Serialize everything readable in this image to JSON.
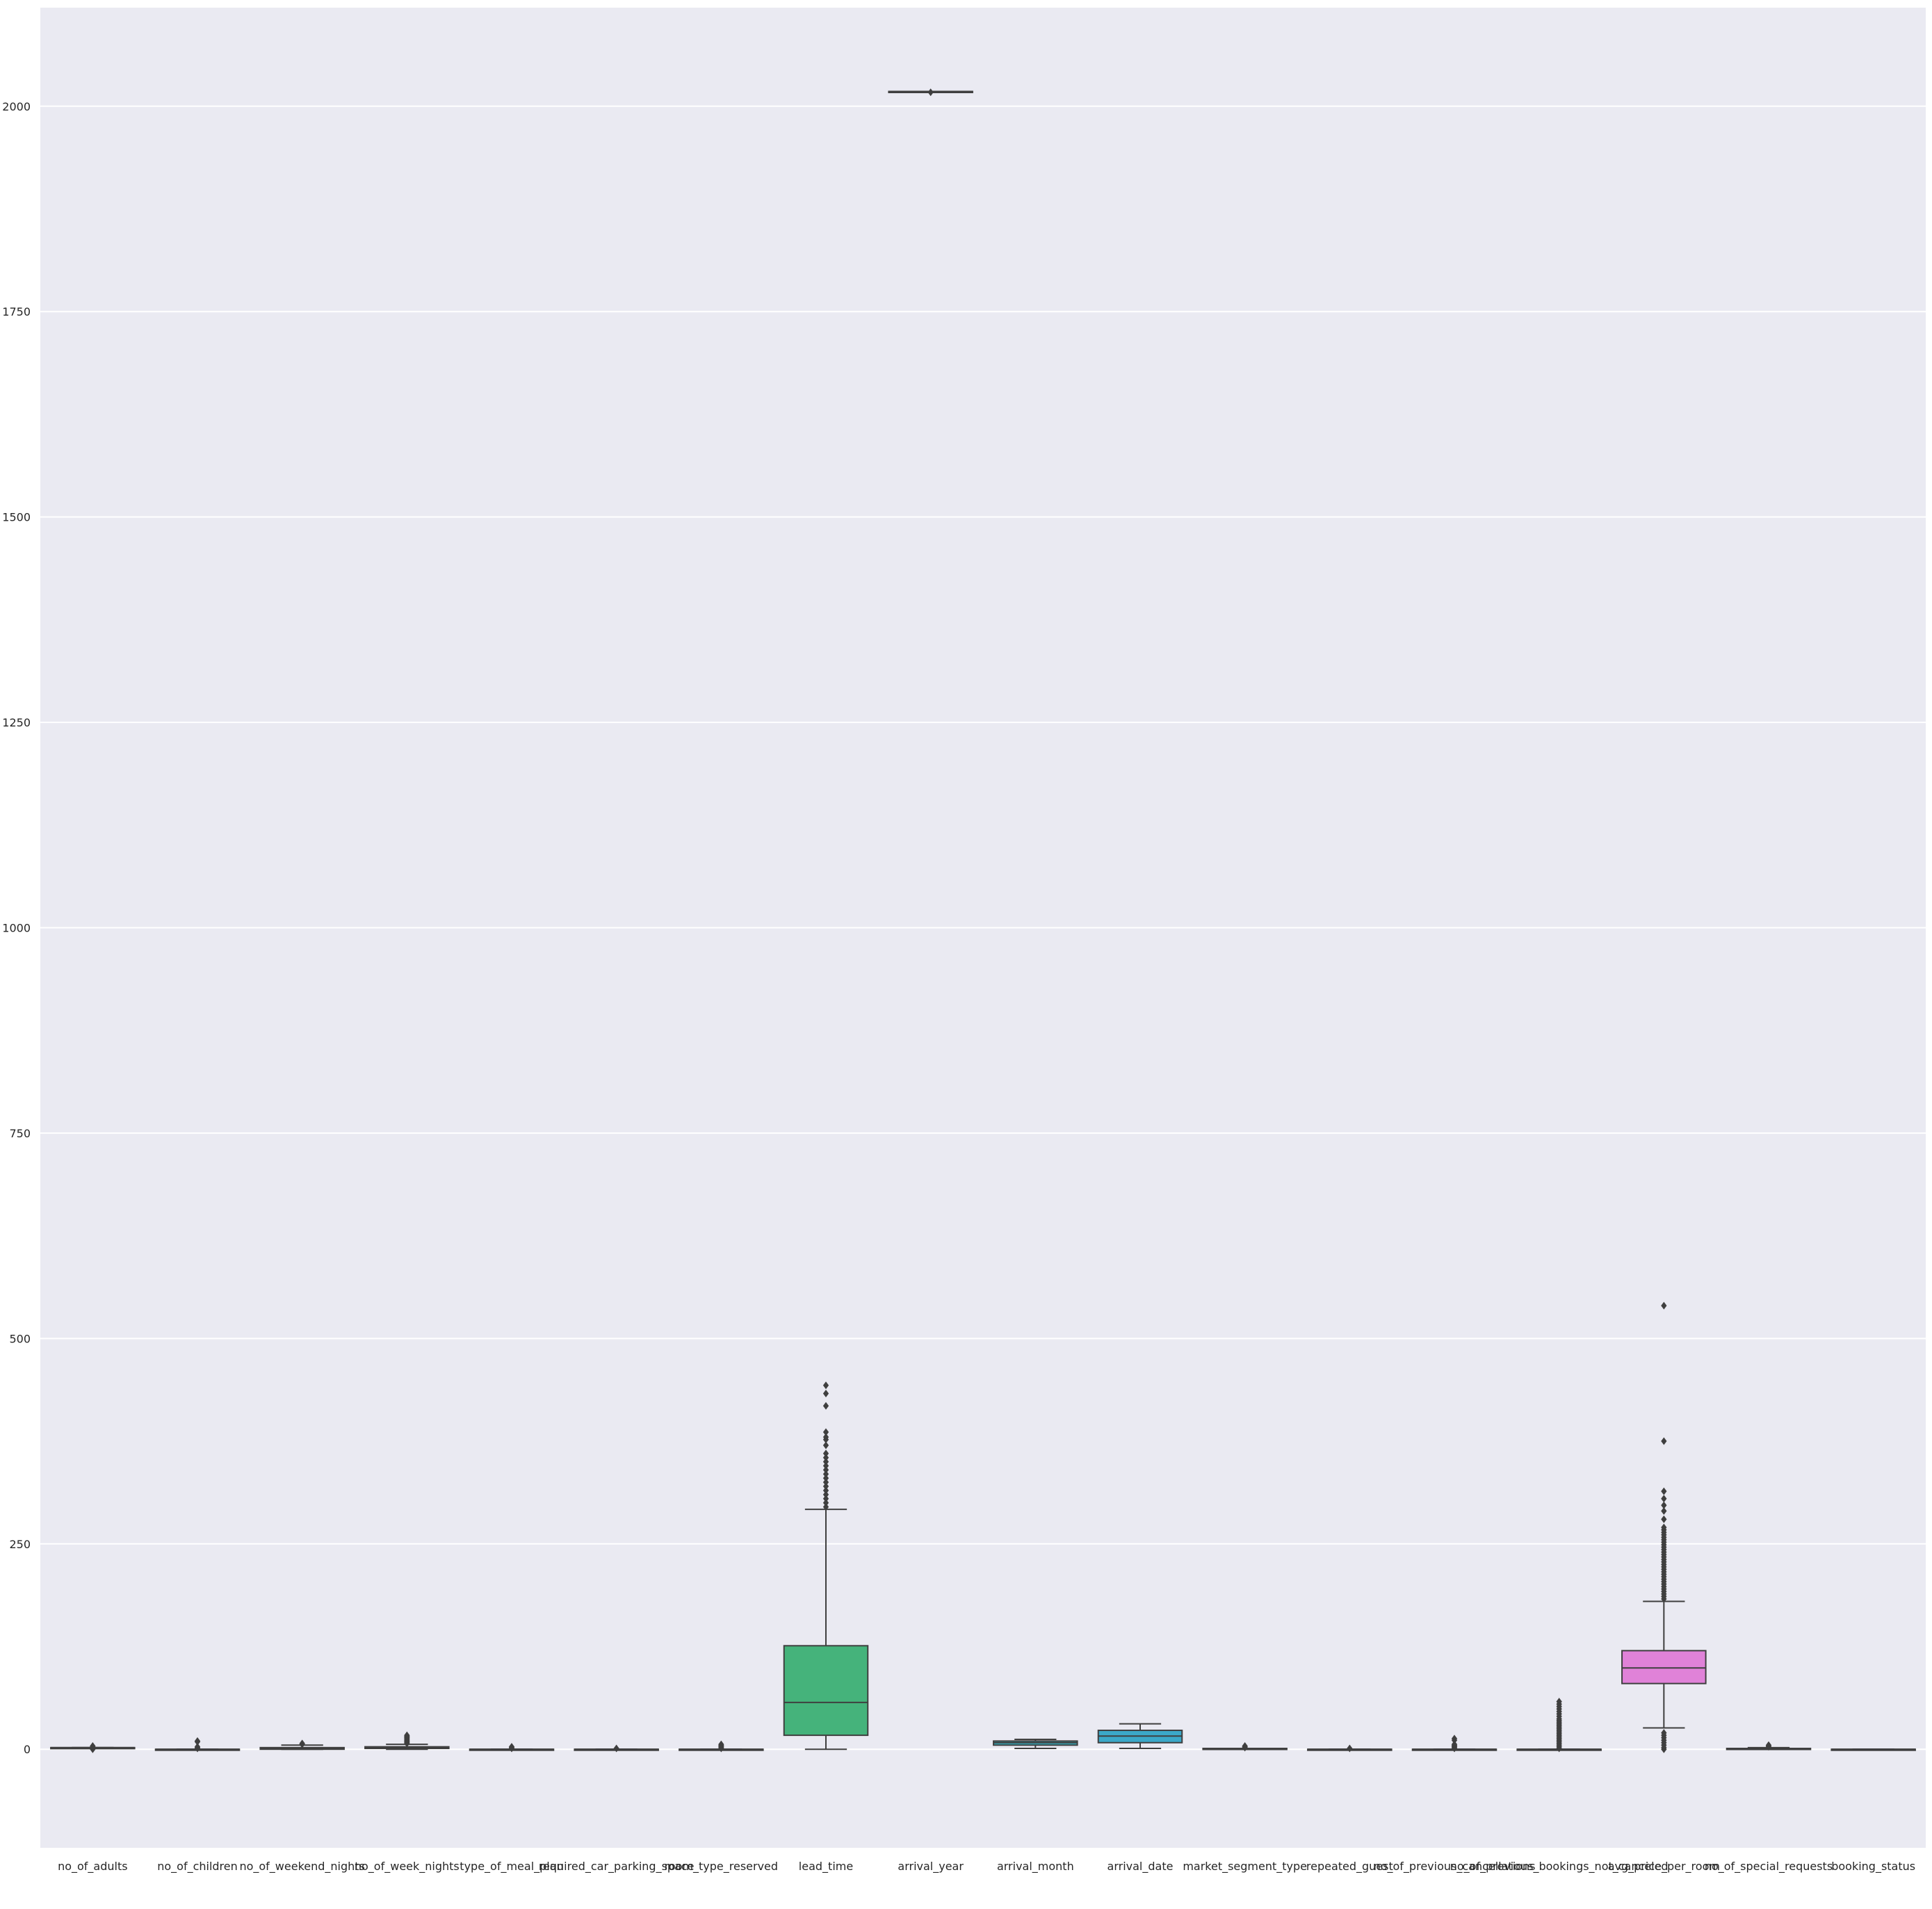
{
  "chart_data": {
    "type": "box",
    "title": "",
    "xlabel": "",
    "ylabel": "",
    "ylim": [
      -120,
      2120
    ],
    "yticks": [
      0,
      250,
      500,
      750,
      1000,
      1250,
      1500,
      1750,
      2000
    ],
    "grid": true,
    "legend": "none",
    "colors": {
      "background": "#eaeaf2",
      "grid": "#ffffff",
      "line": "#3f3f3f"
    },
    "series": [
      {
        "category": "no_of_adults",
        "color": "#e8857f",
        "q1": 2,
        "median": 2,
        "q3": 2,
        "whisker_low": 2,
        "whisker_high": 2,
        "outliers": [
          0,
          1,
          3,
          4
        ]
      },
      {
        "category": "no_of_children",
        "color": "#d8905a",
        "q1": 0,
        "median": 0,
        "q3": 0,
        "whisker_low": 0,
        "whisker_high": 0,
        "outliers": [
          1,
          2,
          3,
          9,
          10
        ]
      },
      {
        "category": "no_of_weekend_nights",
        "color": "#c29a3d",
        "q1": 0,
        "median": 1,
        "q3": 2,
        "whisker_low": 0,
        "whisker_high": 5,
        "outliers": [
          6,
          7
        ]
      },
      {
        "category": "no_of_week_nights",
        "color": "#a6a33c",
        "q1": 1,
        "median": 2,
        "q3": 3,
        "whisker_low": 0,
        "whisker_high": 6,
        "outliers": [
          7,
          8,
          9,
          10,
          11,
          12,
          13,
          14,
          15,
          16,
          17
        ]
      },
      {
        "category": "type_of_meal_plan",
        "color": "#7ead3a",
        "q1": 0,
        "median": 0,
        "q3": 0,
        "whisker_low": 0,
        "whisker_high": 0,
        "outliers": [
          1,
          2,
          3
        ]
      },
      {
        "category": "required_car_parking_space",
        "color": "#3fb54a",
        "q1": 0,
        "median": 0,
        "q3": 0,
        "whisker_low": 0,
        "whisker_high": 0,
        "outliers": [
          1
        ]
      },
      {
        "category": "room_type_reserved",
        "color": "#3db58a",
        "q1": 0,
        "median": 0,
        "q3": 0,
        "whisker_low": 0,
        "whisker_high": 0,
        "outliers": [
          1,
          2,
          3,
          4,
          5,
          6
        ]
      },
      {
        "category": "lead_time",
        "color": "#45b37b",
        "q1": 17,
        "median": 57,
        "q3": 126,
        "whisker_low": 0,
        "whisker_high": 292,
        "outliers": [
          295,
          300,
          305,
          310,
          315,
          320,
          325,
          330,
          335,
          340,
          345,
          350,
          355,
          360,
          370,
          377,
          380,
          386,
          418,
          433,
          443
        ]
      },
      {
        "category": "arrival_year",
        "color": "#3aafa6",
        "q1": 2018,
        "median": 2018,
        "q3": 2018,
        "whisker_low": 2018,
        "whisker_high": 2018,
        "outliers": [
          2017
        ]
      },
      {
        "category": "arrival_month",
        "color": "#37aab8",
        "q1": 5,
        "median": 8,
        "q3": 10,
        "whisker_low": 1,
        "whisker_high": 12,
        "outliers": []
      },
      {
        "category": "arrival_date",
        "color": "#3ba8c8",
        "q1": 8,
        "median": 16,
        "q3": 23,
        "whisker_low": 1,
        "whisker_high": 31,
        "outliers": []
      },
      {
        "category": "market_segment_type",
        "color": "#56a0d8",
        "q1": 0,
        "median": 1,
        "q3": 1,
        "whisker_low": 0,
        "whisker_high": 1,
        "outliers": [
          2,
          3,
          4
        ]
      },
      {
        "category": "repeated_guest",
        "color": "#8a95de",
        "q1": 0,
        "median": 0,
        "q3": 0,
        "whisker_low": 0,
        "whisker_high": 0,
        "outliers": [
          1
        ]
      },
      {
        "category": "no_of_previous_cancellations",
        "color": "#ad8ce0",
        "q1": 0,
        "median": 0,
        "q3": 0,
        "whisker_low": 0,
        "whisker_high": 0,
        "outliers": [
          1,
          2,
          3,
          4,
          5,
          6,
          11,
          13
        ]
      },
      {
        "category": "no_of_previous_bookings_not_canceled",
        "color": "#c883dc",
        "q1": 0,
        "median": 0,
        "q3": 0,
        "whisker_low": 0,
        "whisker_high": 0,
        "outliers": [
          1,
          3,
          5,
          7,
          9,
          11,
          13,
          15,
          17,
          19,
          21,
          23,
          25,
          27,
          29,
          31,
          33,
          35,
          37,
          40,
          43,
          46,
          49,
          52,
          55,
          58
        ]
      },
      {
        "category": "avg_price_per_room",
        "color": "#e082d8",
        "q1": 80,
        "median": 99,
        "q3": 120,
        "whisker_low": 26,
        "whisker_high": 180,
        "outliers": [
          0,
          2,
          5,
          8,
          11,
          14,
          17,
          20,
          183,
          186,
          189,
          192,
          195,
          198,
          201,
          204,
          207,
          210,
          213,
          216,
          219,
          222,
          225,
          228,
          231,
          234,
          237,
          240,
          243,
          246,
          249,
          252,
          255,
          258,
          261,
          264,
          267,
          270,
          280,
          290,
          297,
          305,
          314,
          375,
          540
        ]
      },
      {
        "category": "no_of_special_requests",
        "color": "#e683b8",
        "q1": 0,
        "median": 0,
        "q3": 1,
        "whisker_low": 0,
        "whisker_high": 2,
        "outliers": [
          3,
          4,
          5
        ]
      },
      {
        "category": "booking_status",
        "color": "#e8849a",
        "q1": 0,
        "median": 0,
        "q3": 0,
        "whisker_low": 0,
        "whisker_high": 0,
        "outliers": []
      }
    ]
  }
}
